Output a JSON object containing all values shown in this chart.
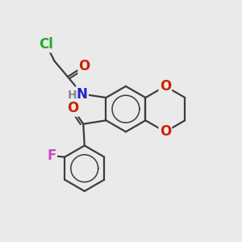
{
  "bg_color": "#eaeaea",
  "bond_color": "#3d3d3d",
  "bond_width": 1.6,
  "atom_colors": {
    "Cl": "#22aa22",
    "O": "#cc2200",
    "N": "#2222cc",
    "H": "#888888",
    "F": "#cc44cc",
    "C": "#3d3d3d"
  },
  "font_size": 12
}
